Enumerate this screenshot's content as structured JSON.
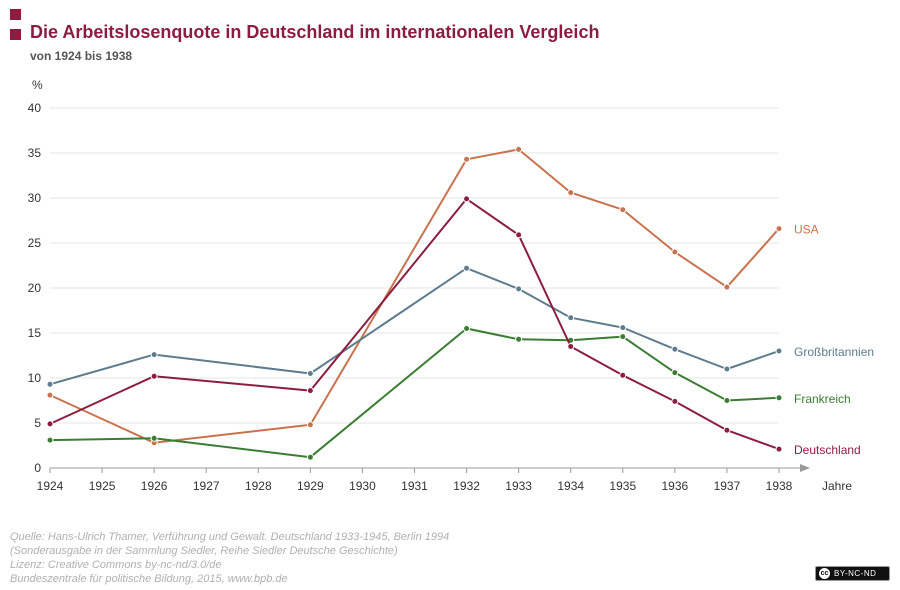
{
  "colors": {
    "accent": "#8b1e3f",
    "usa": "#c8734e",
    "gb": "#5e7c8d",
    "fr": "#3a7d33",
    "de": "#8b1e3f",
    "grid": "#e6e6e6",
    "axis": "#999999"
  },
  "header": {
    "title": "Die Arbeitslosenquote in Deutschland im internationalen Vergleich",
    "subtitle": "von 1924 bis 1938"
  },
  "chart_data": {
    "type": "line",
    "title": "Die Arbeitslosenquote in Deutschland im internationalen Vergleich",
    "subtitle": "von 1924 bis 1938",
    "ylabel": "%",
    "xlabel": "Jahre",
    "ylim": [
      0,
      40
    ],
    "yticks": [
      0,
      5,
      10,
      15,
      20,
      25,
      30,
      35,
      40
    ],
    "xticks": [
      1924,
      1925,
      1926,
      1927,
      1928,
      1929,
      1930,
      1931,
      1932,
      1933,
      1934,
      1935,
      1936,
      1937,
      1938
    ],
    "grid": true,
    "legend": "direct labels at right end of lines",
    "series": [
      {
        "name": "USA",
        "color": "#c8734e",
        "x": [
          1924,
          1926,
          1929,
          1932,
          1933,
          1934,
          1935,
          1936,
          1937,
          1938
        ],
        "values": [
          8.1,
          2.8,
          4.8,
          34.3,
          35.4,
          30.6,
          28.7,
          24.0,
          20.1,
          26.6
        ]
      },
      {
        "name": "Großbritannien",
        "color": "#5e7c8d",
        "x": [
          1924,
          1926,
          1929,
          1932,
          1933,
          1934,
          1935,
          1936,
          1937,
          1938
        ],
        "values": [
          9.3,
          12.6,
          10.5,
          22.2,
          19.9,
          16.7,
          15.6,
          13.2,
          11.0,
          13.0
        ]
      },
      {
        "name": "Frankreich",
        "color": "#3a7d33",
        "x": [
          1924,
          1926,
          1929,
          1932,
          1933,
          1934,
          1935,
          1936,
          1937,
          1938
        ],
        "values": [
          3.1,
          3.3,
          1.2,
          15.5,
          14.3,
          14.2,
          14.6,
          10.6,
          7.5,
          7.8
        ]
      },
      {
        "name": "Deutschland",
        "color": "#8b1e3f",
        "x": [
          1924,
          1926,
          1929,
          1932,
          1933,
          1934,
          1935,
          1936,
          1937,
          1938
        ],
        "values": [
          4.9,
          10.2,
          8.6,
          29.9,
          25.9,
          13.5,
          10.3,
          7.4,
          4.2,
          2.1
        ]
      }
    ]
  },
  "source": {
    "line1": "Quelle:  Hans-Ulrich Thamer, Verführung und Gewalt. Deutschland 1933-1945, Berlin 1994",
    "line2": "(Sonderausgabe in der Sammlung Siedler, Reihe Siedler Deutsche Geschichte)",
    "line3": "Lizenz: Creative Commons by-nc-nd/3.0/de",
    "line4": "Bundeszentrale für politische Bildung, 2015, www.bpb.de"
  },
  "license_badge": {
    "icon_text": "cc",
    "text": "BY-NC-ND"
  }
}
